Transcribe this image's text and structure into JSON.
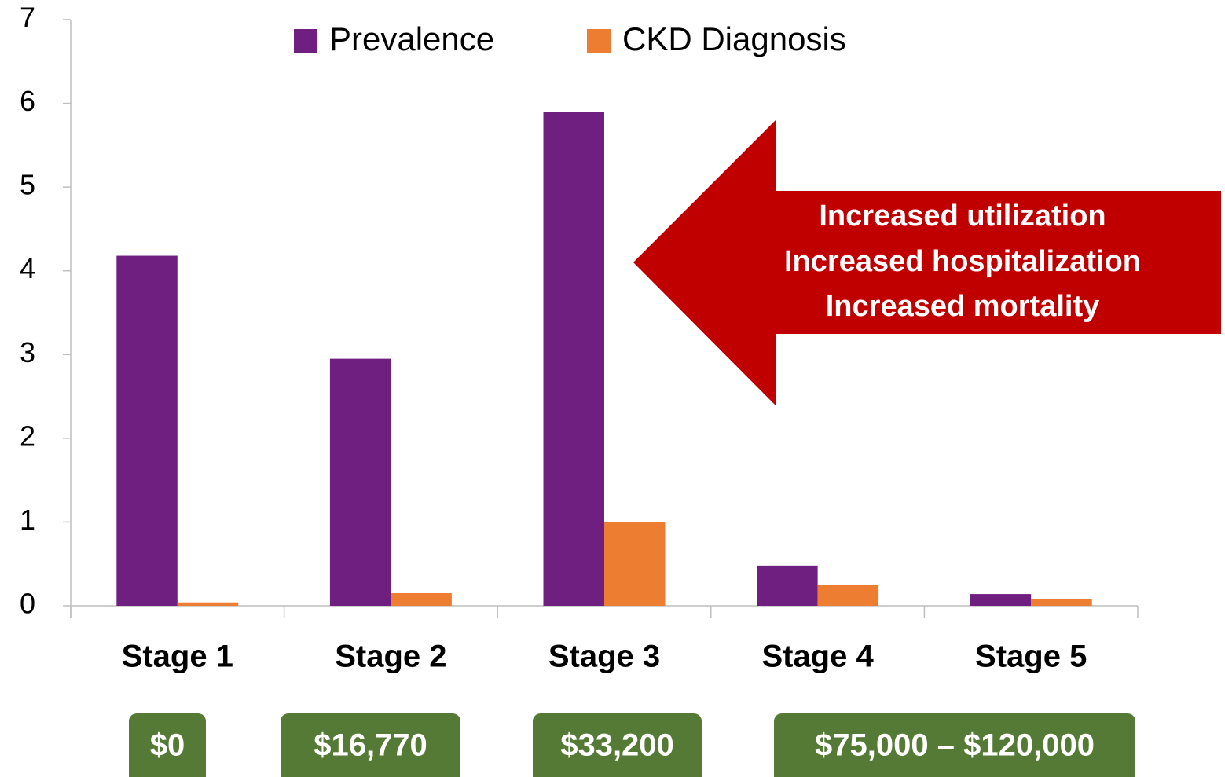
{
  "chart_data": {
    "type": "bar",
    "categories": [
      "Stage 1",
      "Stage 2",
      "Stage 3",
      "Stage 4",
      "Stage 5"
    ],
    "series": [
      {
        "name": "Prevalence",
        "color": "#6f1f7f",
        "values": [
          4.18,
          2.95,
          5.9,
          0.48,
          0.14
        ]
      },
      {
        "name": "CKD Diagnosis",
        "color": "#ed7d31",
        "values": [
          0.04,
          0.15,
          1.0,
          0.25,
          0.08
        ]
      }
    ],
    "ylim": [
      0,
      7
    ],
    "yticks": [
      0,
      1,
      2,
      3,
      4,
      5,
      6,
      7
    ],
    "grid": false,
    "legend": "top",
    "annotations": [
      "Increased utilization",
      "Increased hospitalization",
      "Increased mortality"
    ],
    "annotation_color": "#c00000",
    "cost_labels": [
      "$0",
      "$16,770",
      "$33,200",
      "$75,000 – $120,000"
    ],
    "cost_color": "#557a35"
  }
}
